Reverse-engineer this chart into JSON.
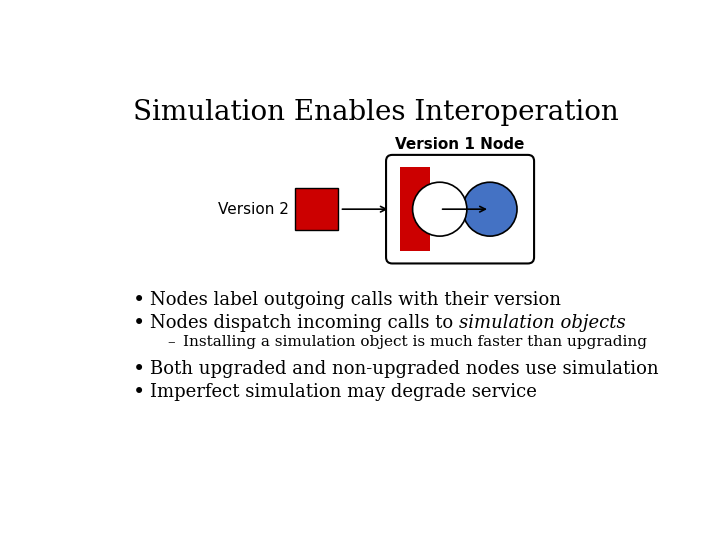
{
  "title": "Simulation Enables Interoperation",
  "title_fontsize": 20,
  "background_color": "#ffffff",
  "diagram": {
    "version1_label": "Version 1 Node",
    "version2_label": "Version 2",
    "red_color": "#cc0000",
    "blue_color": "#4472c4",
    "white_color": "#ffffff"
  },
  "bullets": [
    {
      "text": "Nodes label outgoing calls with their version",
      "italic_part": null,
      "indent": 0
    },
    {
      "text": "Nodes dispatch incoming calls to ",
      "italic_part": "simulation objects",
      "indent": 0
    },
    {
      "text": "Installing a simulation object is much faster than upgrading",
      "italic_part": null,
      "indent": 1
    },
    {
      "text": "Both upgraded and non-upgraded nodes use simulation",
      "italic_part": null,
      "indent": 0
    },
    {
      "text": "Imperfect simulation may degrade service",
      "italic_part": null,
      "indent": 0
    }
  ],
  "bullet_fontsize": 13,
  "sub_bullet_fontsize": 11
}
